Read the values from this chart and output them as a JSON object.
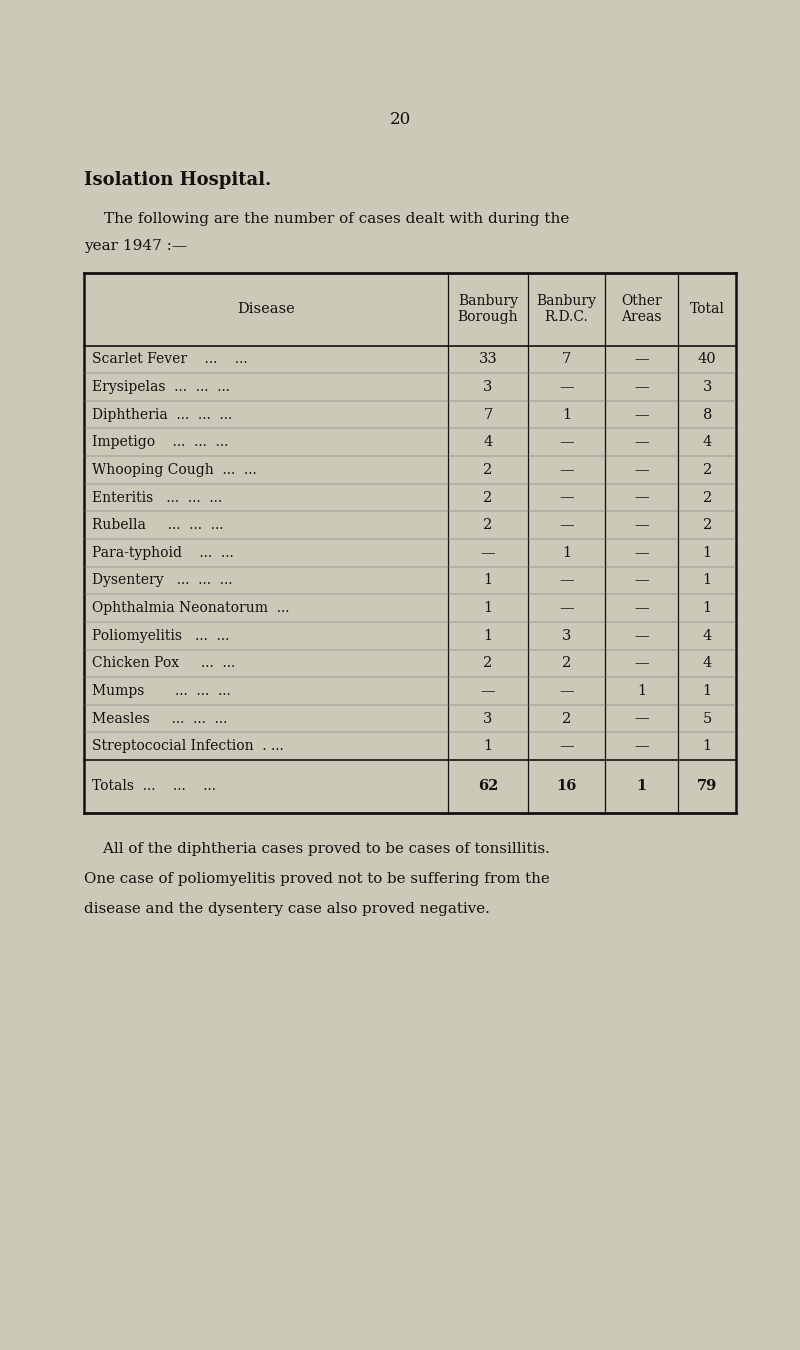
{
  "page_number": "20",
  "title": "Isolation Hospital.",
  "intro_line1": "The following are the number of cases dealt with during the",
  "intro_line2": "year 1947 :—",
  "rows": [
    [
      "Scarlet Fever    ...    ...",
      "33",
      "7",
      "—",
      "40"
    ],
    [
      "Erysipelas  ...  ...  ...",
      "3",
      "—",
      "—",
      "3"
    ],
    [
      "Diphtheria  ...  ...  ...",
      "7",
      "1",
      "—",
      "8"
    ],
    [
      "Impetigo    ...  ...  ...",
      "4",
      "—",
      "—",
      "4"
    ],
    [
      "Whooping Cough  ...  ...",
      "2",
      "—",
      "—",
      "2"
    ],
    [
      "Enteritis   ...  ...  ...",
      "2",
      "—",
      "—",
      "2"
    ],
    [
      "Rubella     ...  ...  ...",
      "2",
      "—",
      "—",
      "2"
    ],
    [
      "Para-typhoid    ...  ...",
      "—",
      "1",
      "—",
      "1"
    ],
    [
      "Dysentery   ...  ...  ...",
      "1",
      "—",
      "—",
      "1"
    ],
    [
      "Ophthalmia Neonatorum  ...",
      "1",
      "—",
      "—",
      "1"
    ],
    [
      "Poliomyelitis   ...  ...",
      "1",
      "3",
      "—",
      "4"
    ],
    [
      "Chicken Pox     ...  ...",
      "2",
      "2",
      "—",
      "4"
    ],
    [
      "Mumps       ...  ...  ...",
      "—",
      "—",
      "1",
      "1"
    ],
    [
      "Measles     ...  ...  ...",
      "3",
      "2",
      "—",
      "5"
    ],
    [
      "Streptococial Infection  . ...",
      "1",
      "—",
      "—",
      "1"
    ]
  ],
  "totals_row": [
    "Totals  ...    ...    ...",
    "62",
    "16",
    "1",
    "79"
  ],
  "footer_line1": "    All of the diphtheria cases proved to be cases of tonsillitis.",
  "footer_line2": "One case of poliomyelitis proved not to be suffering from the",
  "footer_line3": "disease and the dysentery case also proved negative.",
  "bg_color": "#cdc9b8",
  "text_color": "#111111",
  "border_color": "#111111"
}
